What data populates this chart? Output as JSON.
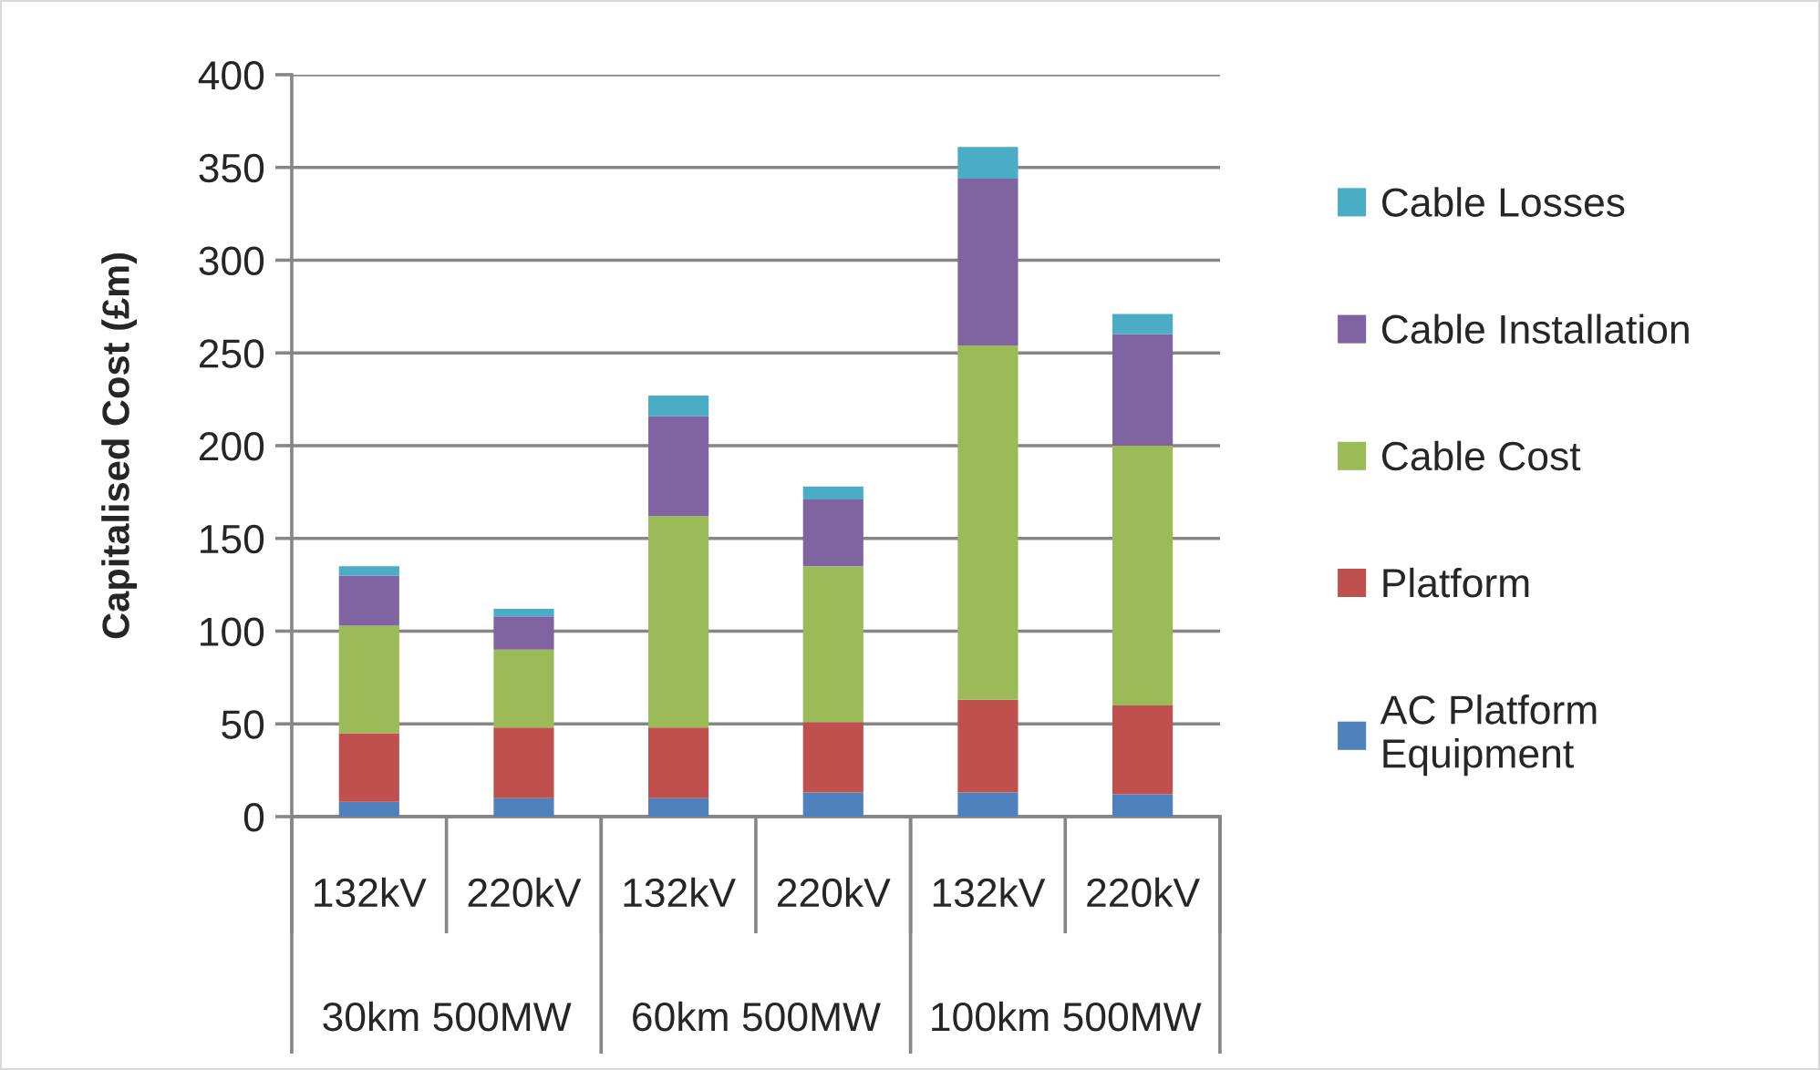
{
  "chart_data": {
    "type": "bar",
    "stacked": true,
    "ylabel": "Capitalised Cost (£m)",
    "categories": [
      "132kV",
      "220kV",
      "132kV",
      "220kV",
      "132kV",
      "220kV"
    ],
    "annotations": [
      "30km 500MW",
      "60km 500MW",
      "100km 500MW"
    ],
    "series": [
      {
        "name": "AC Platform Equipment",
        "color": "#4f81bd",
        "values": [
          8,
          10,
          10,
          13,
          13,
          12
        ]
      },
      {
        "name": "Platform",
        "color": "#c0504d",
        "values": [
          37,
          38,
          38,
          38,
          50,
          48
        ]
      },
      {
        "name": "Cable Cost",
        "color": "#9bbb59",
        "values": [
          58,
          42,
          114,
          84,
          191,
          140
        ]
      },
      {
        "name": "Cable Installation",
        "color": "#8064a2",
        "values": [
          27,
          18,
          54,
          36,
          90,
          60
        ]
      },
      {
        "name": "Cable Losses",
        "color": "#4bacc6",
        "values": [
          5,
          4,
          11,
          7,
          17,
          11
        ]
      }
    ],
    "ylim": [
      0,
      400
    ],
    "yticks": [
      0,
      50,
      100,
      150,
      200,
      250,
      300,
      350,
      400
    ],
    "grid": "y",
    "legend": "right"
  }
}
